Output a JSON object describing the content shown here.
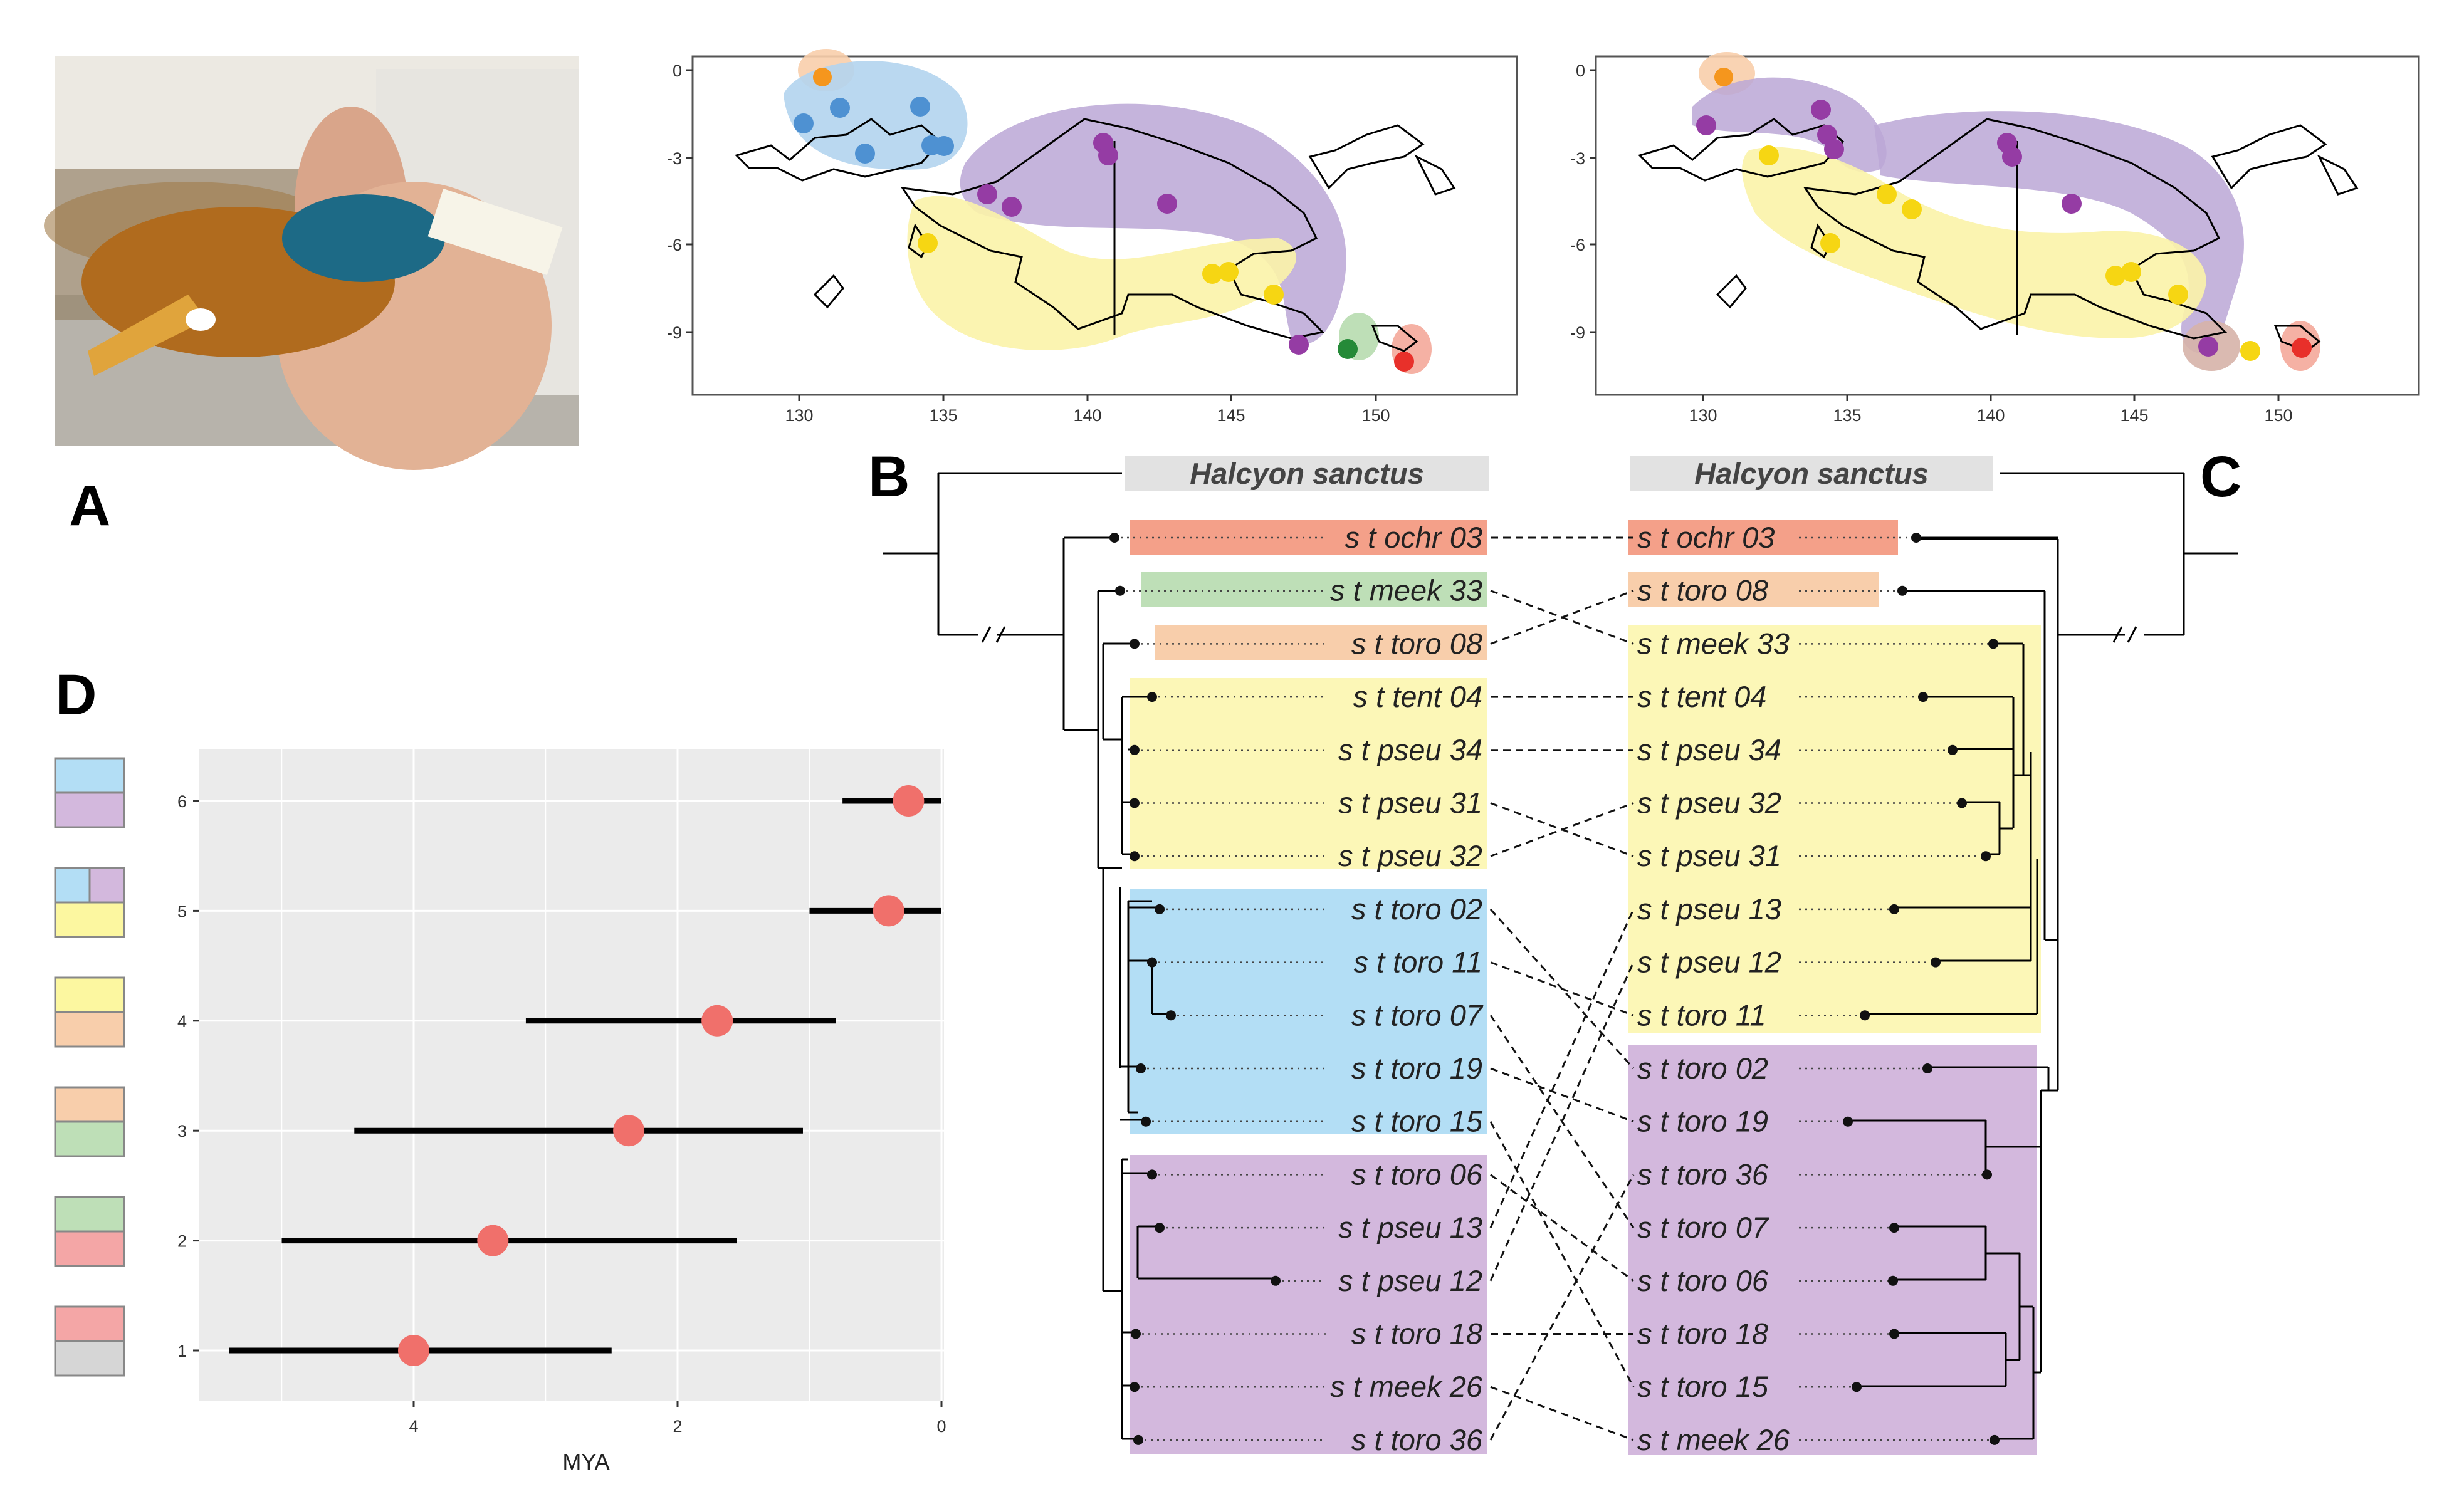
{
  "panels": {
    "a": "A",
    "b": "B",
    "c": "C",
    "d": "D"
  },
  "colors": {
    "ochr": "#f4a089",
    "toro08": "#f8ceab",
    "meek33": "#bedfb7",
    "yellow": "#fcf7b7",
    "blue": "#b3def5",
    "purple": "#d3b8dd",
    "red_point": "#f0706b",
    "panel_bg": "#ebebeb"
  },
  "maps": {
    "x_ticks": [
      "130",
      "135",
      "140",
      "145",
      "150"
    ],
    "y_ticks": [
      "0",
      "-3",
      "-6",
      "-9"
    ]
  },
  "tree_b": {
    "outgroup": "Halcyon sanctus",
    "tips": [
      "s t ochr 03",
      "s t meek 33",
      "s t toro 08",
      "s t tent 04",
      "s t pseu 34",
      "s t pseu 31",
      "s t pseu 32",
      "s t toro 02",
      "s t toro 11",
      "s t toro 07",
      "s t toro 19",
      "s t toro 15",
      "s t toro 06",
      "s t pseu 13",
      "s t pseu 12",
      "s t toro 18",
      "s t meek 26",
      "s t toro 36"
    ]
  },
  "tree_c": {
    "outgroup": "Halcyon sanctus",
    "tips": [
      "s t ochr 03",
      "s t toro 08",
      "s t meek 33",
      "s t tent 04",
      "s t pseu 34",
      "s t pseu 32",
      "s t pseu 31",
      "s t pseu 13",
      "s t pseu 12",
      "s t toro 11",
      "s t toro 02",
      "s t toro 19",
      "s t toro 36",
      "s t toro 07",
      "s t toro 06",
      "s t toro 18",
      "s t toro 15",
      "s t meek 26"
    ]
  },
  "chart_data": {
    "type": "scatter",
    "description_axis": "MYA",
    "xlabel": "MYA",
    "x_reversed": true,
    "xlim": [
      0,
      5.6
    ],
    "x_ticks": [
      "4",
      "2",
      "0"
    ],
    "categories": [
      "1",
      "2",
      "3",
      "4",
      "5",
      "6"
    ],
    "estimates": [
      4.0,
      3.4,
      2.37,
      1.7,
      0.4,
      0.25
    ],
    "lower": [
      2.5,
      1.55,
      1.05,
      0.8,
      0.0,
      0.0
    ],
    "upper": [
      5.4,
      5.0,
      4.45,
      3.15,
      1.0,
      0.75
    ]
  }
}
